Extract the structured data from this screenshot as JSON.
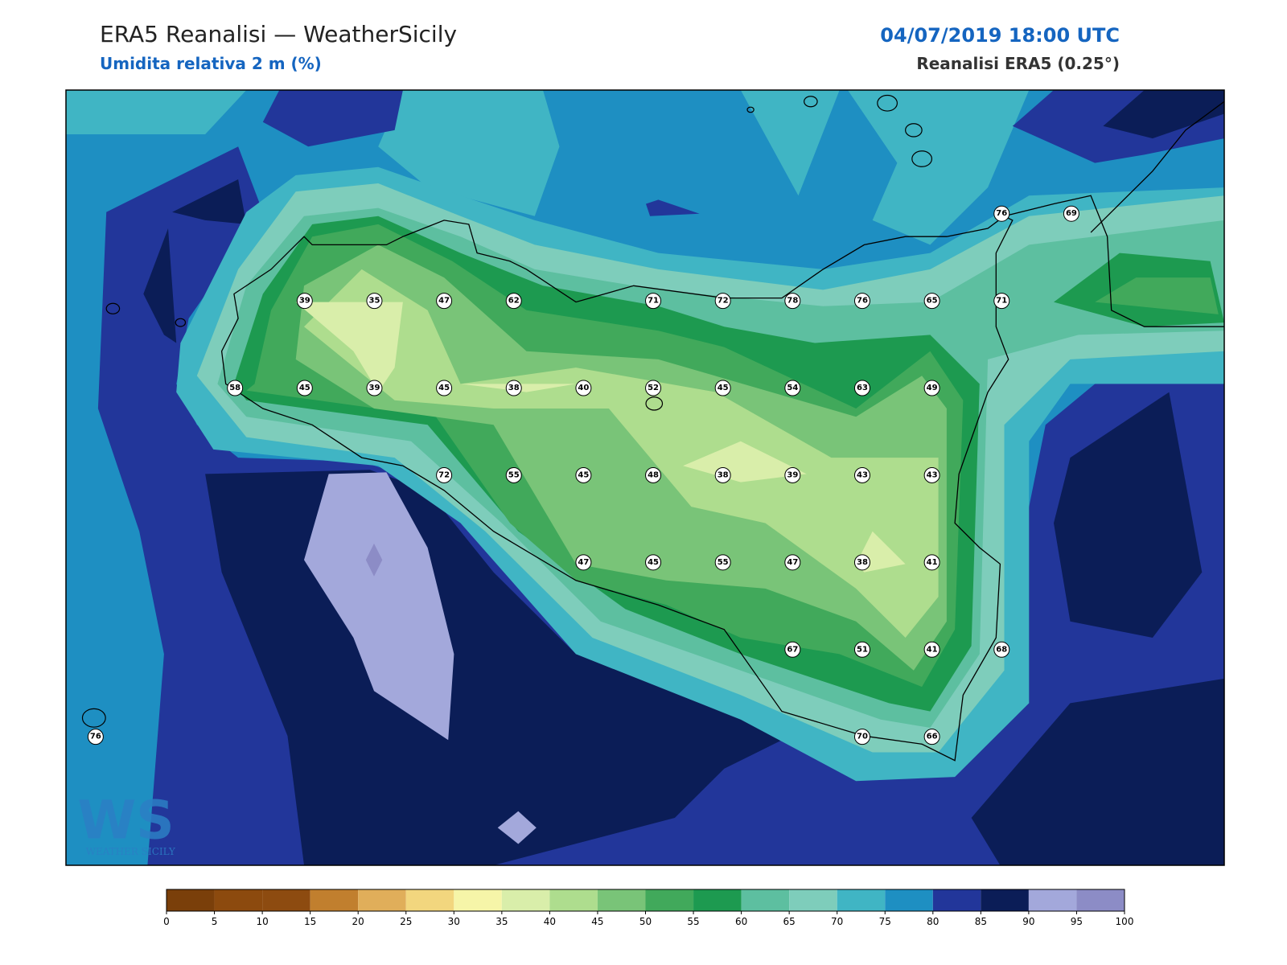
{
  "header": {
    "title": "ERA5 Reanalisi — WeatherSicily",
    "subtitle": "Umidita relativa 2 m (%)",
    "datetime": "04/07/2019 18:00 UTC",
    "source": "Reanalisi ERA5 (0.25°)"
  },
  "stations": {
    "grid": [
      [
        null,
        null,
        null,
        null,
        null,
        null,
        null,
        null,
        null,
        null,
        null,
        null,
        null,
        76,
        69
      ],
      [
        null,
        null,
        null,
        39,
        35,
        47,
        62,
        null,
        71,
        72,
        78,
        76,
        65,
        71,
        null
      ],
      [
        null,
        null,
        58,
        45,
        39,
        45,
        38,
        40,
        52,
        45,
        54,
        63,
        49,
        null,
        null
      ],
      [
        null,
        null,
        null,
        null,
        null,
        72,
        55,
        45,
        48,
        38,
        39,
        43,
        43,
        null,
        null
      ],
      [
        null,
        null,
        null,
        null,
        null,
        null,
        null,
        47,
        45,
        55,
        47,
        38,
        41,
        null,
        null
      ],
      [
        null,
        null,
        null,
        null,
        null,
        null,
        null,
        null,
        null,
        null,
        67,
        51,
        41,
        68,
        null
      ],
      [
        76,
        null,
        null,
        null,
        null,
        null,
        null,
        null,
        null,
        null,
        null,
        70,
        66,
        null,
        null
      ]
    ]
  },
  "colorbar": {
    "ticks": [
      0,
      5,
      10,
      15,
      20,
      25,
      30,
      35,
      40,
      45,
      50,
      55,
      60,
      65,
      70,
      75,
      80,
      85,
      90,
      95,
      100
    ],
    "colors": [
      "#7a3f0a",
      "#8c4a0e",
      "#8d4b10",
      "#c17f2e",
      "#e0ae5a",
      "#f2d67e",
      "#f6f5a8",
      "#d9eeaa",
      "#aedd8e",
      "#79c478",
      "#41a95b",
      "#1d9a50",
      "#5dbfa0",
      "#7ecdbb",
      "#40b5c4",
      "#1e8fc2",
      "#22369a",
      "#0b1d57",
      "#a3a8db",
      "#8c8cc6"
    ]
  },
  "logo": {
    "mark": "WS",
    "text": "WEATHER SICILY"
  }
}
